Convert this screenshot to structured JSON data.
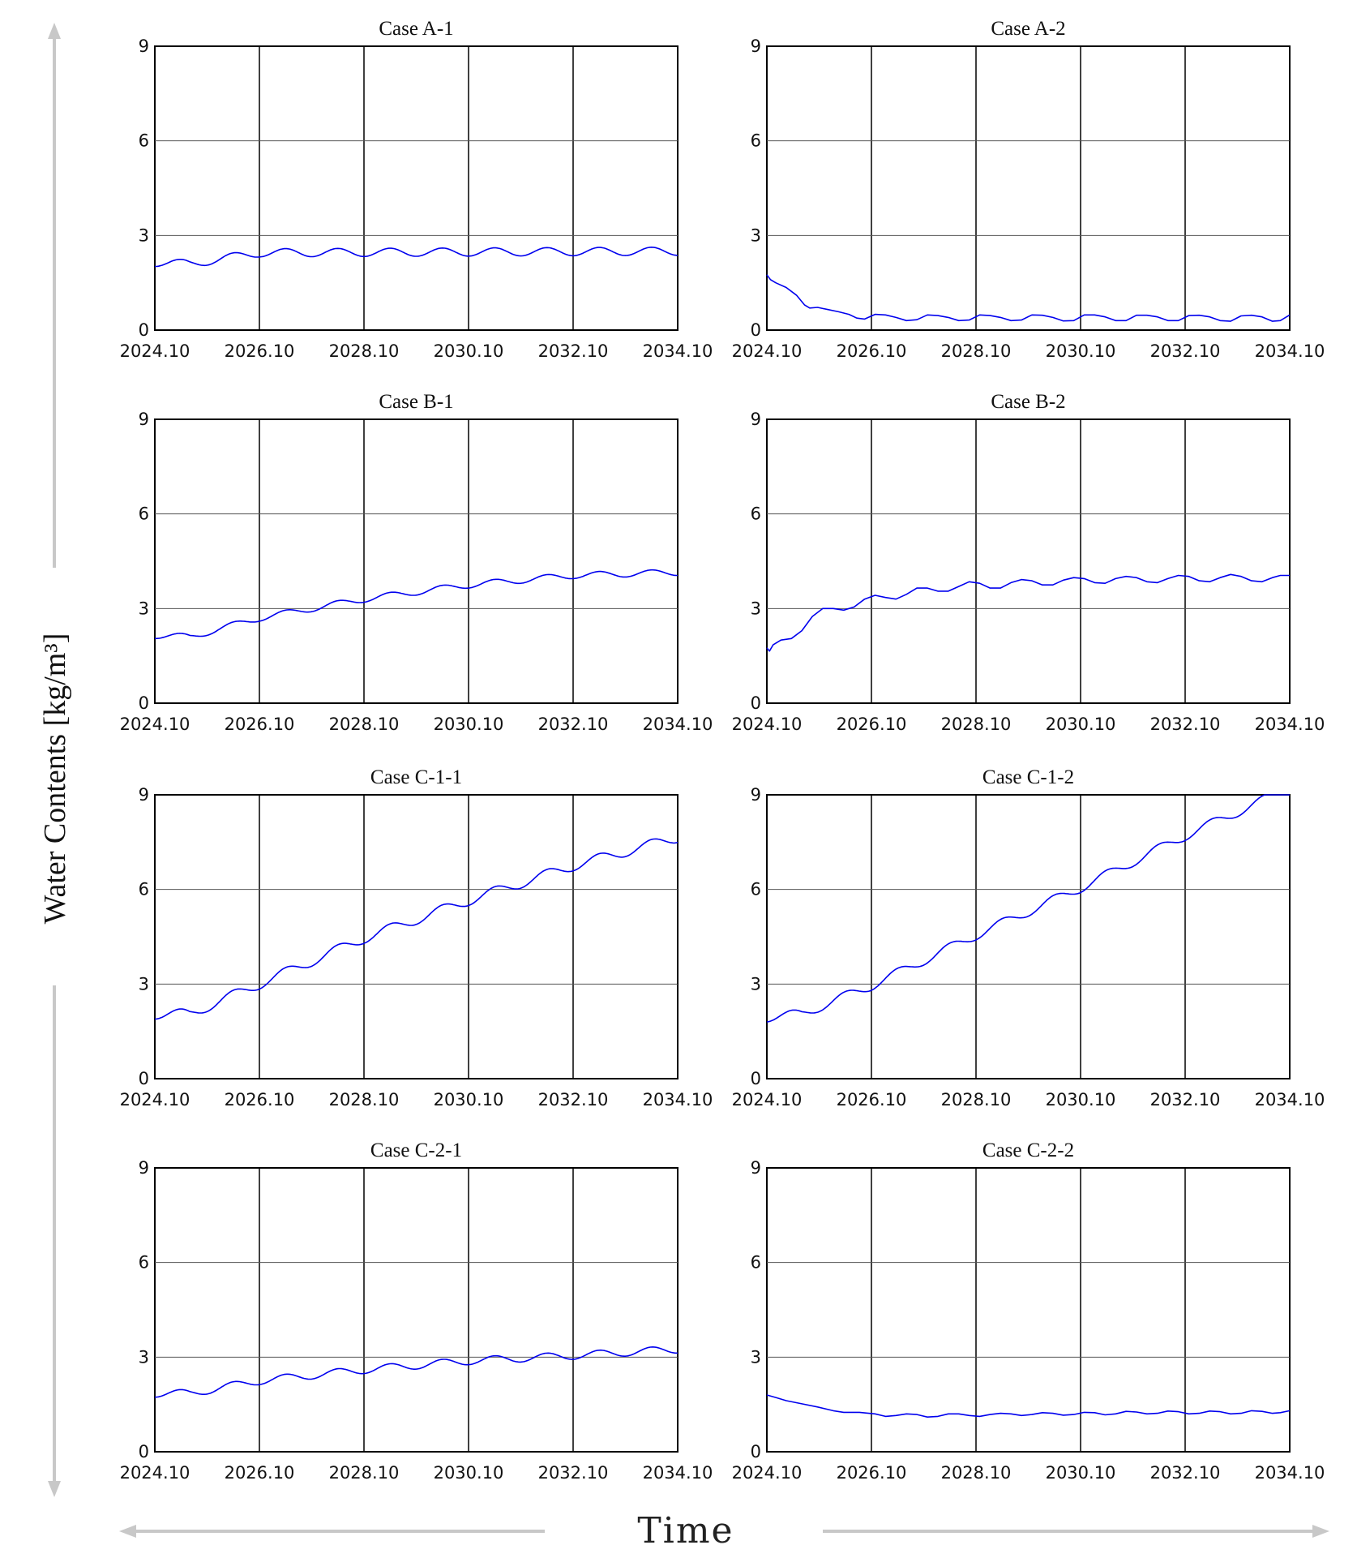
{
  "figure": {
    "y_axis_title": "Water Contents [kg/m³]",
    "x_axis_title": "Time",
    "colors": {
      "series": "#0000ee",
      "grid_major": "#000000",
      "grid_minor": "#555555",
      "arrow": "#c8c8c8"
    }
  },
  "chart_data": [
    {
      "type": "line",
      "title": "Case A-1",
      "xticks": [
        "2024.10",
        "2026.10",
        "2028.10",
        "2030.10",
        "2032.10",
        "2034.10"
      ],
      "yticks": [
        "0",
        "3",
        "6",
        "9"
      ],
      "xlim": [
        2024.83,
        2034.83
      ],
      "ylim": [
        0,
        9
      ],
      "grid": true,
      "series": [
        {
          "shape": "periodic",
          "trend_points": [
            [
              2024.83,
              2.15
            ],
            [
              2025.5,
              2.1
            ],
            [
              2026.83,
              2.45
            ],
            [
              2034.83,
              2.5
            ]
          ],
          "amplitude": 0.13,
          "phase_shift": 0.0
        }
      ]
    },
    {
      "type": "line",
      "title": "Case A-2",
      "xticks": [
        "2024.10",
        "2026.10",
        "2028.10",
        "2030.10",
        "2032.10",
        "2034.10"
      ],
      "yticks": [
        "0",
        "3",
        "6",
        "9"
      ],
      "xlim": [
        2024.83,
        2034.83
      ],
      "ylim": [
        0,
        9
      ],
      "grid": true,
      "series": [
        {
          "shape": "points",
          "points": [
            [
              2024.83,
              1.75
            ],
            [
              2024.9,
              1.6
            ],
            [
              2025.0,
              1.5
            ],
            [
              2025.2,
              1.35
            ],
            [
              2025.4,
              1.1
            ],
            [
              2025.55,
              0.8
            ],
            [
              2025.65,
              0.7
            ],
            [
              2025.8,
              0.72
            ],
            [
              2026.0,
              0.65
            ],
            [
              2026.2,
              0.58
            ],
            [
              2026.4,
              0.5
            ],
            [
              2026.55,
              0.38
            ],
            [
              2026.7,
              0.35
            ],
            [
              2026.9,
              0.5
            ],
            [
              2027.1,
              0.48
            ],
            [
              2027.3,
              0.4
            ],
            [
              2027.5,
              0.3
            ],
            [
              2027.7,
              0.33
            ],
            [
              2027.9,
              0.48
            ],
            [
              2028.1,
              0.46
            ],
            [
              2028.3,
              0.4
            ],
            [
              2028.5,
              0.3
            ],
            [
              2028.7,
              0.32
            ],
            [
              2028.9,
              0.48
            ],
            [
              2029.1,
              0.46
            ],
            [
              2029.3,
              0.4
            ],
            [
              2029.5,
              0.3
            ],
            [
              2029.7,
              0.32
            ],
            [
              2029.9,
              0.48
            ],
            [
              2030.1,
              0.47
            ],
            [
              2030.3,
              0.4
            ],
            [
              2030.5,
              0.29
            ],
            [
              2030.7,
              0.3
            ],
            [
              2030.9,
              0.48
            ],
            [
              2031.1,
              0.48
            ],
            [
              2031.3,
              0.42
            ],
            [
              2031.5,
              0.3
            ],
            [
              2031.7,
              0.3
            ],
            [
              2031.9,
              0.47
            ],
            [
              2032.1,
              0.47
            ],
            [
              2032.3,
              0.42
            ],
            [
              2032.5,
              0.3
            ],
            [
              2032.7,
              0.3
            ],
            [
              2032.9,
              0.46
            ],
            [
              2033.1,
              0.47
            ],
            [
              2033.3,
              0.42
            ],
            [
              2033.5,
              0.3
            ],
            [
              2033.7,
              0.28
            ],
            [
              2033.9,
              0.45
            ],
            [
              2034.1,
              0.47
            ],
            [
              2034.3,
              0.42
            ],
            [
              2034.5,
              0.28
            ],
            [
              2034.65,
              0.3
            ],
            [
              2034.83,
              0.48
            ]
          ]
        }
      ]
    },
    {
      "type": "line",
      "title": "Case B-1",
      "xticks": [
        "2024.10",
        "2026.10",
        "2028.10",
        "2030.10",
        "2032.10",
        "2034.10"
      ],
      "yticks": [
        "0",
        "3",
        "6",
        "9"
      ],
      "xlim": [
        2024.83,
        2034.83
      ],
      "ylim": [
        0,
        9
      ],
      "grid": true,
      "series": [
        {
          "shape": "periodic",
          "trend_points": [
            [
              2024.83,
              2.15
            ],
            [
              2025.5,
              2.1
            ],
            [
              2026.83,
              2.7
            ],
            [
              2028.83,
              3.3
            ],
            [
              2030.83,
              3.75
            ],
            [
              2032.83,
              4.05
            ],
            [
              2034.83,
              4.15
            ]
          ],
          "amplitude": 0.1,
          "phase_shift": 0.0
        }
      ]
    },
    {
      "type": "line",
      "title": "Case B-2",
      "xticks": [
        "2024.10",
        "2026.10",
        "2028.10",
        "2030.10",
        "2032.10",
        "2034.10"
      ],
      "yticks": [
        "0",
        "3",
        "6",
        "9"
      ],
      "xlim": [
        2024.83,
        2034.83
      ],
      "ylim": [
        0,
        9
      ],
      "grid": true,
      "series": [
        {
          "shape": "points",
          "points": [
            [
              2024.83,
              1.75
            ],
            [
              2024.88,
              1.65
            ],
            [
              2024.95,
              1.85
            ],
            [
              2025.1,
              2.0
            ],
            [
              2025.3,
              2.05
            ],
            [
              2025.5,
              2.3
            ],
            [
              2025.7,
              2.75
            ],
            [
              2025.9,
              3.0
            ],
            [
              2026.1,
              3.0
            ],
            [
              2026.3,
              2.95
            ],
            [
              2026.5,
              3.05
            ],
            [
              2026.7,
              3.3
            ],
            [
              2026.9,
              3.42
            ],
            [
              2027.1,
              3.35
            ],
            [
              2027.3,
              3.3
            ],
            [
              2027.5,
              3.45
            ],
            [
              2027.7,
              3.65
            ],
            [
              2027.9,
              3.65
            ],
            [
              2028.1,
              3.55
            ],
            [
              2028.3,
              3.55
            ],
            [
              2028.5,
              3.7
            ],
            [
              2028.7,
              3.85
            ],
            [
              2028.9,
              3.8
            ],
            [
              2029.1,
              3.65
            ],
            [
              2029.3,
              3.65
            ],
            [
              2029.5,
              3.82
            ],
            [
              2029.7,
              3.92
            ],
            [
              2029.9,
              3.88
            ],
            [
              2030.1,
              3.75
            ],
            [
              2030.3,
              3.75
            ],
            [
              2030.5,
              3.9
            ],
            [
              2030.7,
              3.98
            ],
            [
              2030.9,
              3.95
            ],
            [
              2031.1,
              3.82
            ],
            [
              2031.3,
              3.8
            ],
            [
              2031.5,
              3.95
            ],
            [
              2031.7,
              4.02
            ],
            [
              2031.9,
              3.98
            ],
            [
              2032.1,
              3.85
            ],
            [
              2032.3,
              3.82
            ],
            [
              2032.5,
              3.95
            ],
            [
              2032.7,
              4.05
            ],
            [
              2032.9,
              4.02
            ],
            [
              2033.1,
              3.88
            ],
            [
              2033.3,
              3.85
            ],
            [
              2033.5,
              3.98
            ],
            [
              2033.7,
              4.08
            ],
            [
              2033.9,
              4.02
            ],
            [
              2034.1,
              3.88
            ],
            [
              2034.3,
              3.85
            ],
            [
              2034.5,
              3.98
            ],
            [
              2034.65,
              4.05
            ],
            [
              2034.83,
              4.05
            ]
          ]
        }
      ]
    },
    {
      "type": "line",
      "title": "Case C-1-1",
      "xticks": [
        "2024.10",
        "2026.10",
        "2028.10",
        "2030.10",
        "2032.10",
        "2034.10"
      ],
      "yticks": [
        "0",
        "3",
        "6",
        "9"
      ],
      "xlim": [
        2024.83,
        2034.83
      ],
      "ylim": [
        0,
        9
      ],
      "grid": true,
      "series": [
        {
          "shape": "periodic",
          "trend_points": [
            [
              2024.83,
              2.05
            ],
            [
              2025.5,
              2.05
            ],
            [
              2026.83,
              3.0
            ],
            [
              2028.83,
              4.45
            ],
            [
              2030.83,
              5.65
            ],
            [
              2032.83,
              6.75
            ],
            [
              2034.83,
              7.65
            ]
          ],
          "amplitude": 0.16,
          "phase_shift": 0.0
        }
      ]
    },
    {
      "type": "line",
      "title": "Case C-1-2",
      "xticks": [
        "2024.10",
        "2026.10",
        "2028.10",
        "2030.10",
        "2032.10",
        "2034.10"
      ],
      "yticks": [
        "0",
        "3",
        "6",
        "9"
      ],
      "xlim": [
        2024.83,
        2034.83
      ],
      "ylim": [
        0,
        9
      ],
      "grid": true,
      "series": [
        {
          "shape": "periodic",
          "trend_points": [
            [
              2024.83,
              1.95
            ],
            [
              2025.5,
              2.05
            ],
            [
              2026.83,
              2.95
            ],
            [
              2028.83,
              4.55
            ],
            [
              2030.83,
              6.05
            ],
            [
              2032.83,
              7.7
            ],
            [
              2034.55,
              9.0
            ],
            [
              2034.83,
              9.2
            ]
          ],
          "amplitude": 0.15,
          "phase_shift": 0.0
        }
      ]
    },
    {
      "type": "line",
      "title": "Case C-2-1",
      "xticks": [
        "2024.10",
        "2026.10",
        "2028.10",
        "2030.10",
        "2032.10",
        "2034.10"
      ],
      "yticks": [
        "0",
        "3",
        "6",
        "9"
      ],
      "xlim": [
        2024.83,
        2034.83
      ],
      "ylim": [
        0,
        9
      ],
      "grid": true,
      "series": [
        {
          "shape": "periodic",
          "trend_points": [
            [
              2024.83,
              1.85
            ],
            [
              2025.5,
              1.85
            ],
            [
              2026.83,
              2.25
            ],
            [
              2028.83,
              2.6
            ],
            [
              2030.83,
              2.88
            ],
            [
              2032.83,
              3.05
            ],
            [
              2034.83,
              3.25
            ]
          ],
          "amplitude": 0.12,
          "phase_shift": 0.0
        }
      ]
    },
    {
      "type": "line",
      "title": "Case C-2-2",
      "xticks": [
        "2024.10",
        "2026.10",
        "2028.10",
        "2030.10",
        "2032.10",
        "2034.10"
      ],
      "yticks": [
        "0",
        "3",
        "6",
        "9"
      ],
      "xlim": [
        2024.83,
        2034.83
      ],
      "ylim": [
        0,
        9
      ],
      "grid": true,
      "series": [
        {
          "shape": "points",
          "points": [
            [
              2024.83,
              1.8
            ],
            [
              2025.0,
              1.72
            ],
            [
              2025.2,
              1.62
            ],
            [
              2025.5,
              1.52
            ],
            [
              2025.8,
              1.42
            ],
            [
              2026.1,
              1.3
            ],
            [
              2026.3,
              1.25
            ],
            [
              2026.6,
              1.25
            ],
            [
              2026.9,
              1.2
            ],
            [
              2027.1,
              1.12
            ],
            [
              2027.3,
              1.15
            ],
            [
              2027.5,
              1.2
            ],
            [
              2027.7,
              1.18
            ],
            [
              2027.9,
              1.1
            ],
            [
              2028.1,
              1.12
            ],
            [
              2028.3,
              1.2
            ],
            [
              2028.5,
              1.2
            ],
            [
              2028.7,
              1.15
            ],
            [
              2028.9,
              1.12
            ],
            [
              2029.1,
              1.18
            ],
            [
              2029.3,
              1.22
            ],
            [
              2029.5,
              1.2
            ],
            [
              2029.7,
              1.15
            ],
            [
              2029.9,
              1.18
            ],
            [
              2030.1,
              1.24
            ],
            [
              2030.3,
              1.22
            ],
            [
              2030.5,
              1.16
            ],
            [
              2030.7,
              1.18
            ],
            [
              2030.9,
              1.25
            ],
            [
              2031.1,
              1.24
            ],
            [
              2031.3,
              1.17
            ],
            [
              2031.5,
              1.2
            ],
            [
              2031.7,
              1.28
            ],
            [
              2031.9,
              1.26
            ],
            [
              2032.1,
              1.2
            ],
            [
              2032.3,
              1.22
            ],
            [
              2032.5,
              1.29
            ],
            [
              2032.7,
              1.27
            ],
            [
              2032.9,
              1.2
            ],
            [
              2033.1,
              1.22
            ],
            [
              2033.3,
              1.29
            ],
            [
              2033.5,
              1.27
            ],
            [
              2033.7,
              1.2
            ],
            [
              2033.9,
              1.22
            ],
            [
              2034.1,
              1.3
            ],
            [
              2034.3,
              1.28
            ],
            [
              2034.5,
              1.22
            ],
            [
              2034.65,
              1.24
            ],
            [
              2034.83,
              1.3
            ]
          ]
        }
      ]
    }
  ]
}
